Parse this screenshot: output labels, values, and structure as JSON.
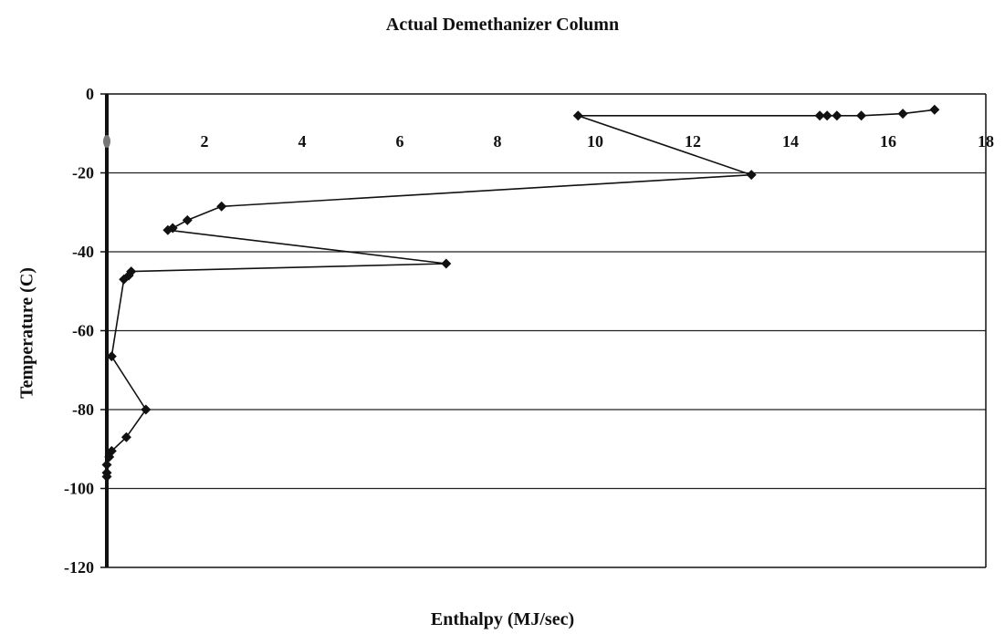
{
  "chart_data": {
    "type": "line",
    "title": "Actual Demethanizer Column",
    "xlabel": "Enthalpy (MJ/sec)",
    "ylabel": "Temperature (C)",
    "xlim": [
      0,
      18
    ],
    "ylim": [
      -120,
      0
    ],
    "x_ticks": [
      2,
      4,
      6,
      8,
      10,
      12,
      14,
      16,
      18
    ],
    "y_ticks": [
      0,
      -20,
      -40,
      -60,
      -80,
      -100,
      -120
    ],
    "x_tick_labels": [
      "2",
      "4",
      "6",
      "8",
      "10",
      "12",
      "14",
      "16",
      "18"
    ],
    "y_tick_labels": [
      "0",
      "-20",
      "-40",
      "-60",
      "-80",
      "-100",
      "-120"
    ],
    "grid": "horizontal",
    "legend": "none",
    "marker": "diamond",
    "color": "#111111",
    "series": [
      {
        "x": [
          16.95,
          16.3,
          15.45,
          14.95,
          14.75,
          14.6,
          9.65,
          13.2,
          2.35,
          1.65,
          1.35,
          1.25,
          6.95,
          0.5,
          0.45,
          0.35,
          0.1,
          0.8,
          0.4,
          0.1,
          0.05,
          0.0,
          0.0,
          0.0
        ],
        "y": [
          -4,
          -5,
          -5.5,
          -5.5,
          -5.5,
          -5.5,
          -5.5,
          -20.5,
          -28.5,
          -32,
          -34,
          -34.5,
          -43,
          -45,
          -46,
          -47,
          -66.5,
          -80,
          -87,
          -90.5,
          -92,
          -94,
          -96,
          -97
        ]
      }
    ],
    "x_axis_zero_marker": "0"
  }
}
